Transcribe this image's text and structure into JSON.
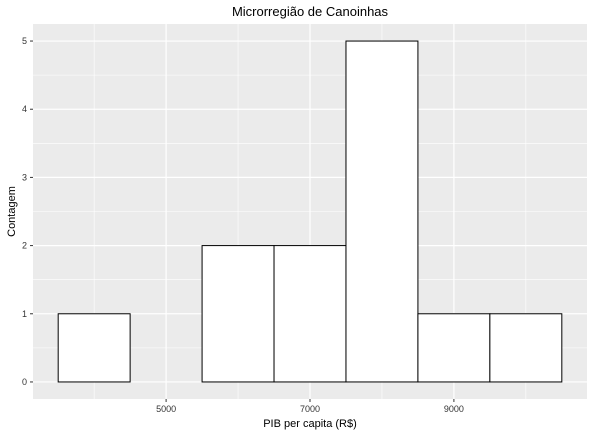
{
  "chart_data": {
    "type": "bar",
    "subtype": "histogram",
    "title": "Microrregião de  Canoinhas",
    "xlabel": "PIB per capita (R$)",
    "ylabel": "Contagem",
    "bins": [
      {
        "x0": 3500,
        "x1": 4500,
        "count": 1
      },
      {
        "x0": 4500,
        "x1": 5500,
        "count": 0
      },
      {
        "x0": 5500,
        "x1": 6500,
        "count": 2
      },
      {
        "x0": 6500,
        "x1": 7500,
        "count": 2
      },
      {
        "x0": 7500,
        "x1": 8500,
        "count": 5
      },
      {
        "x0": 8500,
        "x1": 9500,
        "count": 1
      },
      {
        "x0": 9500,
        "x1": 10500,
        "count": 1
      }
    ],
    "xlim": [
      3150,
      10850
    ],
    "ylim": [
      -0.25,
      5.25
    ],
    "x_ticks": [
      5000,
      7000,
      9000
    ],
    "x_tick_labels": [
      "5000",
      "7000",
      "9000"
    ],
    "x_minor_ticks": [
      4000,
      6000,
      8000,
      10000
    ],
    "y_ticks": [
      0,
      1,
      2,
      3,
      4,
      5
    ],
    "y_tick_labels": [
      "0",
      "1",
      "2",
      "3",
      "4",
      "5"
    ],
    "grid": true,
    "legend": "none",
    "colors": {
      "panel": "#ebebeb",
      "grid": "#ffffff",
      "bar_fill": "#ffffff",
      "bar_stroke": "#000000"
    }
  }
}
